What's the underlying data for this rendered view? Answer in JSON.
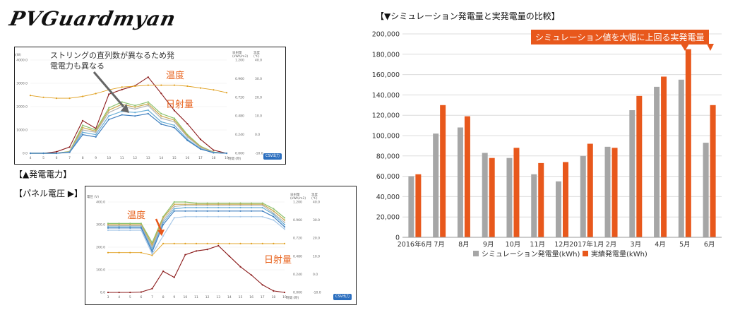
{
  "logo_text": "PVGuardmyan",
  "left": {
    "power_chart": {
      "y_left_label": "電力(W)",
      "y_right1_label": "日射量\n(kWh/m2)",
      "y_right2_label": "温度\n(℃)",
      "y_left_ticks": [
        "4000.0",
        "3000.0",
        "2000.0",
        "1000.0",
        "0.0"
      ],
      "y_right1_ticks": [
        "1.200",
        "0.960",
        "0.720",
        "0.480",
        "0.240",
        "0.000"
      ],
      "y_right2_ticks": [
        "40.0",
        "30.0",
        "20.0",
        "10.0",
        "0.0",
        "-10.0"
      ],
      "x_ticks": [
        "4",
        "5",
        "6",
        "7",
        "8",
        "9",
        "10",
        "11",
        "12",
        "13",
        "14",
        "15",
        "16",
        "17",
        "18",
        "19"
      ],
      "x_label": "時間 (時)",
      "annotation": "ストリングの直列数が異なるため発電電力も異なる",
      "label_temp": "温度",
      "label_irr": "日射量",
      "csv_button": "CSV出力"
    },
    "power_caption": "【▲発電電力】",
    "voltage_caption": "【パネル電圧 ▶】",
    "voltage_chart": {
      "y_left_label": "電圧 (V)",
      "y_right1_label": "日射量\n(kWh/m2)",
      "y_right2_label": "温度\n(℃)",
      "y_left_ticks": [
        "400.0",
        "300.0",
        "200.0",
        "100.0",
        "0.0"
      ],
      "y_right1_ticks": [
        "1.200",
        "0.960",
        "0.720",
        "0.480",
        "0.240",
        "0.000"
      ],
      "y_right2_ticks": [
        "40.0",
        "30.0",
        "20.0",
        "10.0",
        "0.0",
        "-10.0"
      ],
      "x_ticks": [
        "3",
        "4",
        "5",
        "6",
        "7",
        "8",
        "9",
        "10",
        "11",
        "12",
        "13",
        "14",
        "15",
        "16",
        "17",
        "18",
        "19"
      ],
      "x_label": "時間 (時)",
      "label_temp": "温度",
      "label_irr": "日射量",
      "csv_button": "CSV出力"
    }
  },
  "right": {
    "title": "【▼シミュレーション発電量と実発電量の比較】",
    "callout": "シミュレーション値を大幅に上回る実発電量"
  },
  "colors": {
    "sim": "#a6a6a6",
    "actual": "#e8581c",
    "irr": "#8b1a1a",
    "temp": "#e0a020"
  },
  "chart_data": [
    {
      "type": "line",
      "x": [
        4,
        5,
        6,
        7,
        8,
        9,
        10,
        11,
        12,
        13,
        14,
        15,
        16,
        17,
        18,
        19
      ],
      "ylabel": "電力(W)",
      "ylim": [
        0,
        4000
      ],
      "series": [
        {
          "name": "日射量",
          "values": [
            0,
            0,
            0.02,
            0.08,
            0.42,
            0.32,
            0.76,
            0.82,
            0.87,
            0.98,
            0.77,
            0.55,
            0.38,
            0.18,
            0.04,
            0
          ]
        },
        {
          "name": "温度",
          "values": [
            21,
            20,
            19.5,
            19.5,
            20.5,
            22,
            24,
            25.5,
            26,
            26.5,
            26.5,
            26.5,
            26,
            25,
            24,
            22.5
          ]
        },
        {
          "values": [
            0,
            0,
            0,
            80,
            1200,
            1000,
            1950,
            2200,
            2050,
            2200,
            1700,
            1500,
            800,
            300,
            50,
            0
          ]
        },
        {
          "values": [
            0,
            0,
            0,
            70,
            1100,
            950,
            1850,
            2100,
            1980,
            2120,
            1600,
            1420,
            750,
            280,
            40,
            0
          ]
        },
        {
          "values": [
            0,
            0,
            0,
            60,
            1000,
            900,
            1750,
            2000,
            1900,
            2050,
            1500,
            1350,
            700,
            250,
            35,
            0
          ]
        },
        {
          "values": [
            0,
            0,
            0,
            50,
            900,
            800,
            1600,
            1800,
            1750,
            1850,
            1350,
            1200,
            600,
            200,
            30,
            0
          ]
        },
        {
          "values": [
            0,
            0,
            0,
            40,
            800,
            700,
            1450,
            1650,
            1600,
            1700,
            1250,
            1100,
            550,
            180,
            20,
            0
          ]
        }
      ]
    },
    {
      "type": "line",
      "x": [
        3,
        4,
        5,
        6,
        7,
        8,
        9,
        10,
        11,
        12,
        13,
        14,
        15,
        16,
        17,
        18,
        19
      ],
      "ylabel": "電圧 (V)",
      "ylim": [
        0,
        400
      ],
      "series": [
        {
          "name": "日射量",
          "values": [
            0,
            0,
            0,
            0.005,
            0.05,
            0.28,
            0.2,
            0.5,
            0.55,
            0.57,
            0.62,
            0.48,
            0.34,
            0.23,
            0.1,
            0.02,
            0
          ]
        },
        {
          "name": "温度",
          "values": [
            12,
            12,
            12,
            12,
            10.5,
            17,
            17,
            17,
            17,
            17,
            17,
            17,
            17,
            17,
            17,
            17,
            17
          ]
        },
        {
          "values": [
            305,
            305,
            305,
            305,
            220,
            335,
            400,
            400,
            395,
            395,
            395,
            395,
            395,
            395,
            395,
            370,
            330
          ]
        },
        {
          "values": [
            300,
            300,
            300,
            300,
            210,
            330,
            390,
            390,
            390,
            390,
            390,
            390,
            390,
            390,
            390,
            360,
            320
          ]
        },
        {
          "values": [
            295,
            295,
            295,
            295,
            200,
            320,
            380,
            385,
            385,
            385,
            385,
            385,
            385,
            385,
            385,
            350,
            310
          ]
        },
        {
          "values": [
            290,
            290,
            290,
            290,
            190,
            310,
            370,
            375,
            375,
            375,
            375,
            375,
            375,
            375,
            375,
            345,
            300
          ]
        },
        {
          "values": [
            285,
            285,
            285,
            285,
            180,
            300,
            360,
            360,
            360,
            360,
            360,
            360,
            360,
            360,
            360,
            335,
            290
          ]
        },
        {
          "values": [
            275,
            275,
            275,
            275,
            170,
            250,
            330,
            335,
            335,
            335,
            335,
            335,
            335,
            335,
            335,
            320,
            280
          ]
        }
      ]
    },
    {
      "type": "bar",
      "categories": [
        "2016年6月",
        "7月",
        "8月",
        "9月",
        "10月",
        "11月",
        "12月",
        "2017年1月",
        "2月",
        "3月",
        "4月",
        "5月",
        "6月"
      ],
      "series": [
        {
          "name": "シミュレーション発電量(kWh)",
          "values": [
            60000,
            102000,
            108000,
            83000,
            78000,
            62000,
            55000,
            80000,
            89000,
            125000,
            148000,
            155000,
            93000
          ]
        },
        {
          "name": "実績発電量(kWh)",
          "values": [
            62000,
            130000,
            119000,
            78000,
            88000,
            73000,
            74000,
            92000,
            88000,
            139000,
            158000,
            185000,
            130000
          ]
        }
      ],
      "ylim": [
        0,
        200000
      ],
      "y_ticks": [
        "0",
        "20,000",
        "40,000",
        "60,000",
        "80,000",
        "100,000",
        "120,000",
        "140,000",
        "160,000",
        "180,000",
        "200,000"
      ],
      "grid": true,
      "legend": "bottom"
    }
  ]
}
